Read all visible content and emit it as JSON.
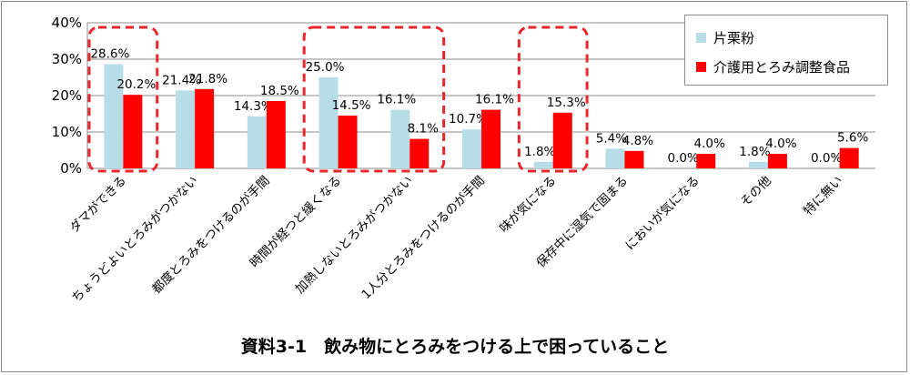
{
  "chart_data": {
    "type": "bar",
    "title": "資料3-1　飲み物にとろみをつける上で困っていること",
    "ylim": [
      0,
      40
    ],
    "yticks": [
      "0%",
      "10%",
      "20%",
      "30%",
      "40%"
    ],
    "ytick_values": [
      0,
      10,
      20,
      30,
      40
    ],
    "categories": [
      "ダマができる",
      "ちょうどよいとろみがつかない",
      "都度とろみをつけるのが手間",
      "時間が経つと緩くなる",
      "加熱しないとろみがつかない",
      "1人分とろみをつけるのが手間",
      "味が気になる",
      "保存中に湿気で固まる",
      "においが気になる",
      "その他",
      "特に無い"
    ],
    "series": [
      {
        "name": "片栗粉",
        "color": "#b7dde8",
        "values": [
          28.6,
          21.4,
          14.3,
          25.0,
          16.1,
          10.7,
          1.8,
          5.4,
          0.0,
          1.8,
          0.0
        ],
        "labels": [
          "28.6%",
          "21.4%",
          "14.3%",
          "25.0%",
          "16.1%",
          "10.7%",
          "1.8%",
          "5.4%",
          "0.0%",
          "1.8%",
          "0.0%"
        ]
      },
      {
        "name": "介護用とろみ調整食品",
        "color": "#ff0000",
        "values": [
          20.2,
          21.8,
          18.5,
          14.5,
          8.1,
          16.1,
          15.3,
          4.8,
          4.0,
          4.0,
          5.6
        ],
        "labels": [
          "20.2%",
          "21.8%",
          "18.5%",
          "14.5%",
          "8.1%",
          "16.1%",
          "15.3%",
          "4.8%",
          "4.0%",
          "4.0%",
          "5.6%"
        ]
      }
    ],
    "grid": true,
    "legend": "top-right",
    "highlighted_groups": [
      [
        0
      ],
      [
        3,
        4
      ],
      [
        6
      ]
    ],
    "highlight_color": "#e8262b"
  }
}
